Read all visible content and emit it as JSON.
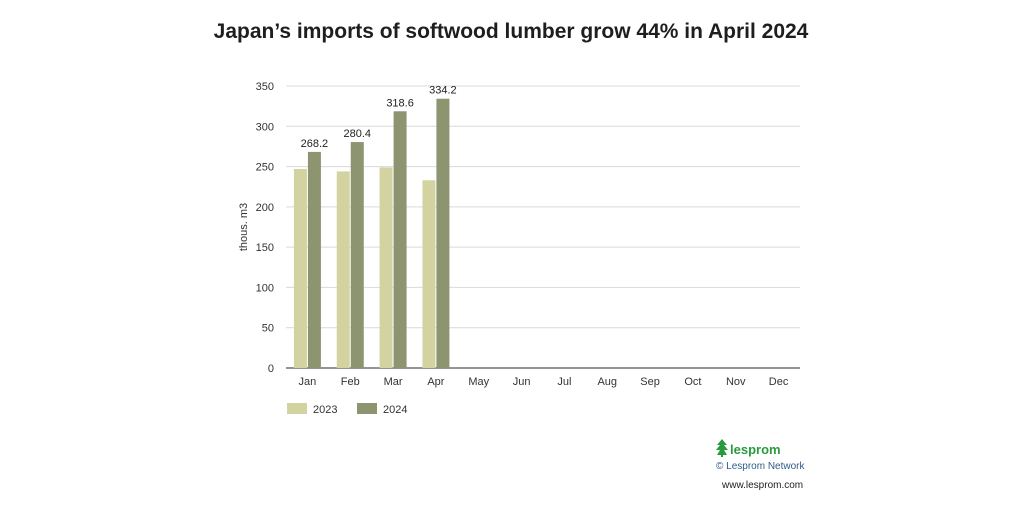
{
  "chart_data": {
    "type": "bar",
    "title": "Japan’s imports of softwood lumber grow 44% in April 2024",
    "ylabel": "thous. m3",
    "xlabel": "",
    "ylim": [
      0,
      350
    ],
    "yticks": [
      0,
      50,
      100,
      150,
      200,
      250,
      300,
      350
    ],
    "grid": true,
    "legend_position": "bottom-left",
    "categories": [
      "Jan",
      "Feb",
      "Mar",
      "Apr",
      "May",
      "Jun",
      "Jul",
      "Aug",
      "Sep",
      "Oct",
      "Nov",
      "Dec"
    ],
    "series": [
      {
        "name": "2023",
        "color": "#d3d3a2",
        "values": [
          247,
          244,
          249,
          233,
          null,
          null,
          null,
          null,
          null,
          null,
          null,
          null
        ]
      },
      {
        "name": "2024",
        "color": "#8c9470",
        "values": [
          268.2,
          280.4,
          318.6,
          334.2,
          null,
          null,
          null,
          null,
          null,
          null,
          null,
          null
        ],
        "data_labels": [
          "268.2",
          "280.4",
          "318.6",
          "334.2"
        ]
      }
    ]
  },
  "brand": {
    "name": "lesprom",
    "copyright": "© Lesprom Network",
    "url": "www.lesprom.com",
    "logo_icon": "fir-tree-icon",
    "accent_color": "#2a9a3c"
  }
}
